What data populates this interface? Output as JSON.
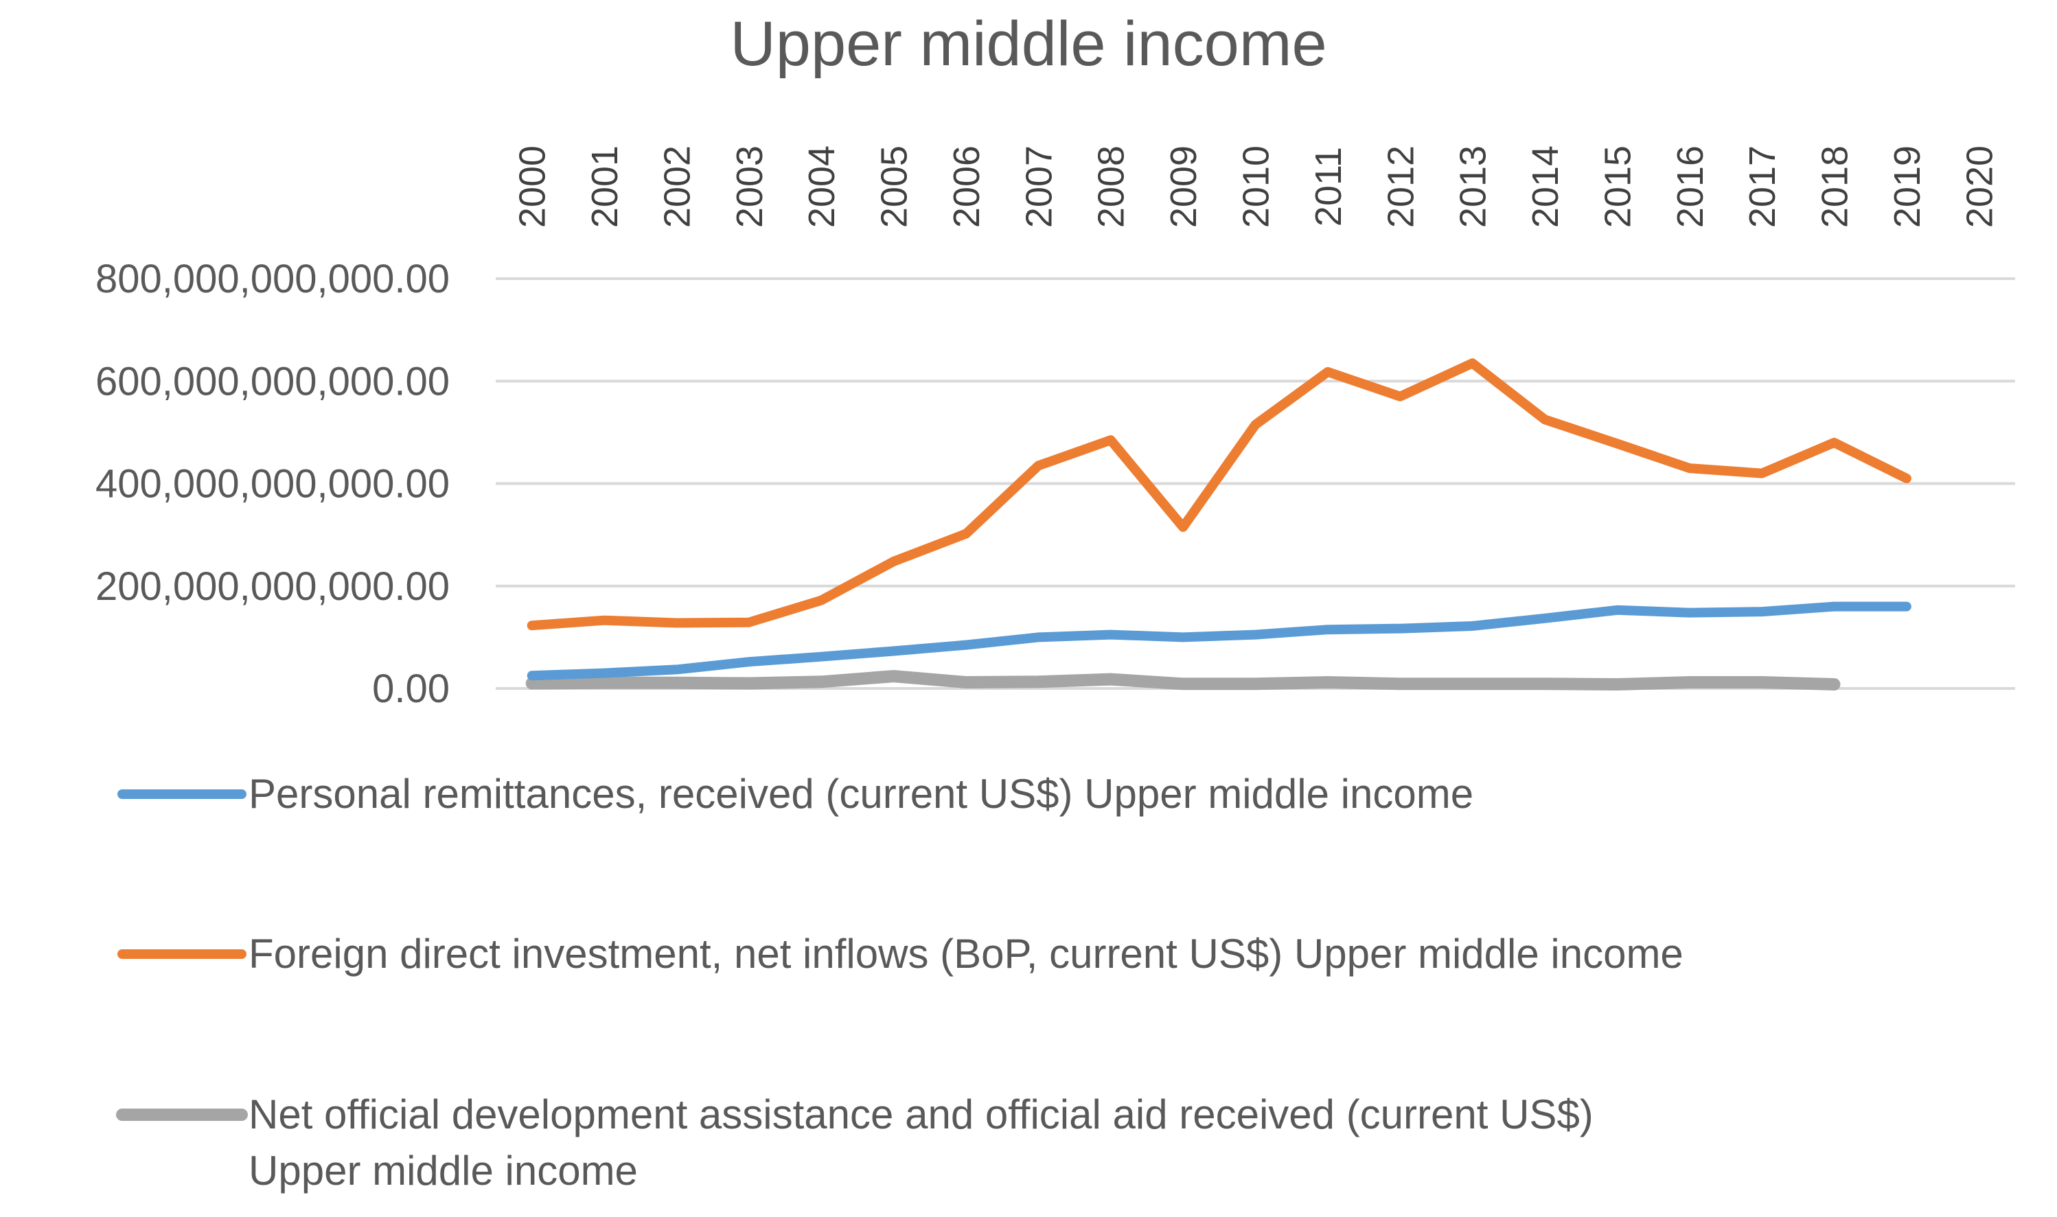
{
  "chart_data": {
    "type": "line",
    "title": "Upper middle income",
    "xlabel": "",
    "ylabel": "",
    "categories": [
      "2000",
      "2001",
      "2002",
      "2003",
      "2004",
      "2005",
      "2006",
      "2007",
      "2008",
      "2009",
      "2010",
      "2011",
      "2012",
      "2013",
      "2014",
      "2015",
      "2016",
      "2017",
      "2018",
      "2019",
      "2020"
    ],
    "y_tick_labels": [
      "0.00",
      "200,000,000,000.00",
      "400,000,000,000.00",
      "600,000,000,000.00",
      "800,000,000,000.00"
    ],
    "y_tick_values": [
      0,
      200000000000,
      400000000000,
      600000000000,
      800000000000
    ],
    "ylim": [
      0,
      800000000000
    ],
    "grid": true,
    "x_axis_position": "top",
    "legend_position": "bottom",
    "series": [
      {
        "name": "Personal remittances, received (current US$) Upper middle income",
        "color": "#5B9BD5",
        "values": [
          25000000000,
          30000000000,
          37000000000,
          52000000000,
          62000000000,
          73000000000,
          85000000000,
          100000000000,
          105000000000,
          100000000000,
          105000000000,
          115000000000,
          117000000000,
          122000000000,
          137000000000,
          153000000000,
          148000000000,
          150000000000,
          160000000000,
          160000000000,
          null
        ]
      },
      {
        "name": "Foreign direct investment, net inflows (BoP, current US$) Upper middle income",
        "color": "#ED7D31",
        "values": [
          123000000000,
          133000000000,
          128000000000,
          129000000000,
          172000000000,
          248000000000,
          302000000000,
          435000000000,
          485000000000,
          315000000000,
          515000000000,
          618000000000,
          570000000000,
          635000000000,
          525000000000,
          478000000000,
          430000000000,
          420000000000,
          480000000000,
          410000000000,
          null
        ]
      },
      {
        "name": "Net official development assistance and official aid received (current US$) Upper middle income",
        "color": "#A5A5A5",
        "values": [
          10000000000,
          11000000000,
          11000000000,
          10000000000,
          13000000000,
          24000000000,
          12000000000,
          13000000000,
          18000000000,
          9000000000,
          9000000000,
          12000000000,
          9000000000,
          9000000000,
          9000000000,
          8000000000,
          12000000000,
          12000000000,
          8000000000,
          null,
          null
        ]
      }
    ]
  }
}
